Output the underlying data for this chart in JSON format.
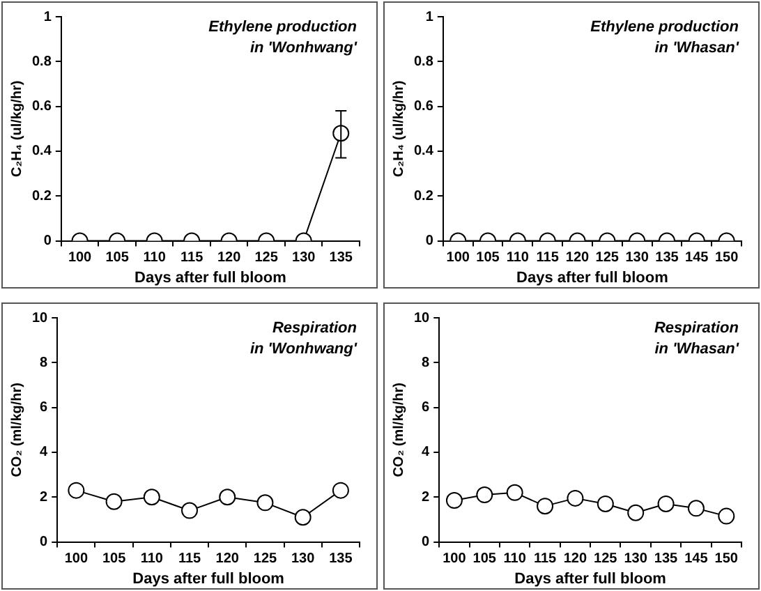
{
  "chart_data": [
    {
      "type": "line",
      "xlabel": "Days after full bloom",
      "ylabel": "C₂H₄ (ul/kg/hr)",
      "annotations": [
        "Ethylene production",
        "in 'Wonhwang'"
      ],
      "categories": [
        "100",
        "105",
        "110",
        "115",
        "120",
        "125",
        "130",
        "135"
      ],
      "series": [
        {
          "color": "#000000",
          "values": [
            0,
            0,
            0,
            0,
            0,
            0,
            0,
            0.48
          ],
          "errors": [
            null,
            null,
            null,
            null,
            null,
            null,
            null,
            [
              0.37,
              0.58
            ]
          ]
        }
      ],
      "ylim": [
        0,
        1
      ],
      "yticks": [
        0,
        0.2,
        0.4,
        0.6,
        0.8,
        1
      ],
      "grid": false,
      "legend": false,
      "marker": "circle",
      "line_style": "solid"
    },
    {
      "type": "line",
      "xlabel": "Days after full bloom",
      "ylabel": "C₂H₄ (ul/kg/hr)",
      "annotations": [
        "Ethylene production",
        "in 'Whasan'"
      ],
      "categories": [
        "100",
        "105",
        "110",
        "115",
        "120",
        "125",
        "130",
        "135",
        "145",
        "150"
      ],
      "series": [
        {
          "color": "#000000",
          "values": [
            0,
            0,
            0,
            0,
            0,
            0,
            0,
            0,
            0,
            0
          ]
        }
      ],
      "ylim": [
        0,
        1
      ],
      "yticks": [
        0,
        0.2,
        0.4,
        0.6,
        0.8,
        1
      ],
      "grid": false,
      "legend": false,
      "marker": "circle",
      "line_style": "solid"
    },
    {
      "type": "line",
      "xlabel": "Days after full bloom",
      "ylabel": "CO₂ (ml/kg/hr)",
      "annotations": [
        "Respiration",
        "in 'Wonhwang'"
      ],
      "categories": [
        "100",
        "105",
        "110",
        "115",
        "120",
        "125",
        "130",
        "135"
      ],
      "series": [
        {
          "color": "#000000",
          "values": [
            2.3,
            1.8,
            2.0,
            1.4,
            2.0,
            1.75,
            1.1,
            2.3
          ]
        }
      ],
      "ylim": [
        0,
        10
      ],
      "yticks": [
        0,
        2,
        4,
        6,
        8,
        10
      ],
      "grid": false,
      "legend": false,
      "marker": "circle",
      "line_style": "solid"
    },
    {
      "type": "line",
      "xlabel": "Days after full bloom",
      "ylabel": "CO₂ (ml/kg/hr)",
      "annotations": [
        "Respiration",
        "in 'Whasan'"
      ],
      "categories": [
        "100",
        "105",
        "110",
        "115",
        "120",
        "125",
        "130",
        "135",
        "145",
        "150"
      ],
      "series": [
        {
          "color": "#000000",
          "values": [
            1.85,
            2.1,
            2.2,
            1.6,
            1.95,
            1.7,
            1.3,
            1.7,
            1.5,
            1.15
          ]
        }
      ],
      "ylim": [
        0,
        10
      ],
      "yticks": [
        0,
        2,
        4,
        6,
        8,
        10
      ],
      "grid": false,
      "legend": false,
      "marker": "circle",
      "line_style": "solid"
    }
  ]
}
